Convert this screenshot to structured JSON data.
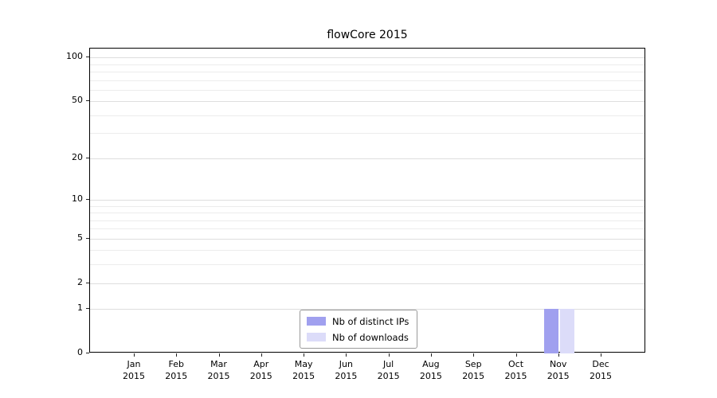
{
  "chart_data": {
    "type": "bar",
    "title": "flowCore 2015",
    "categories": [
      "Jan",
      "Feb",
      "Mar",
      "Apr",
      "May",
      "Jun",
      "Jul",
      "Aug",
      "Sep",
      "Oct",
      "Nov",
      "Dec"
    ],
    "x_year": "2015",
    "series": [
      {
        "name": "Nb of distinct IPs",
        "color": "#a0a0ef",
        "values": [
          0,
          0,
          0,
          0,
          0,
          0,
          0,
          0,
          0,
          0,
          1,
          0
        ]
      },
      {
        "name": "Nb of downloads",
        "color": "#dcdcf9",
        "values": [
          0,
          0,
          0,
          0,
          0,
          0,
          0,
          0,
          0,
          0,
          1,
          0
        ]
      }
    ],
    "xlabel": "",
    "ylabel": "",
    "yscale": "log1p",
    "ylim": [
      0,
      115
    ],
    "yticks": [
      0,
      1,
      2,
      5,
      10,
      20,
      50,
      100
    ],
    "minor_gridlines": [
      2,
      3,
      4,
      6,
      7,
      8,
      9,
      30,
      40,
      60,
      70,
      80,
      90
    ],
    "grid": "horizontal",
    "legend_position": "lower center inside"
  }
}
